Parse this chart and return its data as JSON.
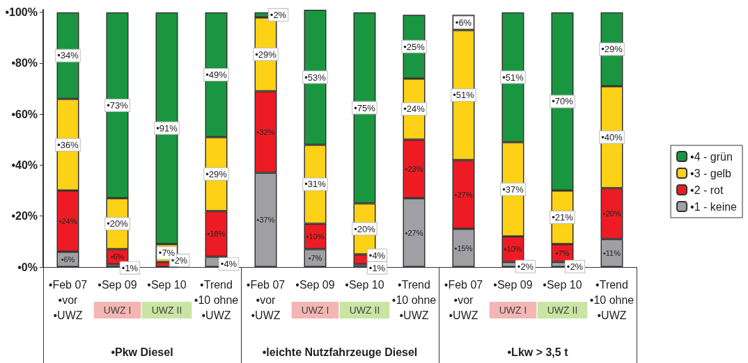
{
  "chart_data": {
    "type": "bar",
    "stacked": true,
    "categories": [
      "•Feb 07\n•vor\n•UWZ",
      "•Sep 09",
      "•Sep 10",
      "•Trend\n•10 ohne\n•UWZ",
      "•Feb 07\n•vor\n•UWZ",
      "•Sep 09",
      "•Sep 10",
      "•Trend\n•10 ohne\n•UWZ",
      "•Feb 07\n•vor\n•UWZ",
      "•Sep 09",
      "•Sep 10",
      "•Trend\n•10 ohne\n•UWZ"
    ],
    "series": [
      {
        "name": "•1 - keine",
        "color": "#a0a0a4",
        "values": [
          6,
          1,
          0,
          4,
          37,
          7,
          1,
          27,
          15,
          2,
          2,
          11
        ],
        "value_labels": [
          "•6%",
          "•1%",
          null,
          "•4%",
          "•37%",
          "•7%",
          "•1%",
          "•27%",
          "•15%",
          "•2%",
          "•2%",
          "•11%"
        ]
      },
      {
        "name": "•2 - rot",
        "color": "#ed1c24",
        "values": [
          24,
          6,
          2,
          18,
          32,
          10,
          4,
          23,
          27,
          10,
          7,
          20
        ],
        "value_labels": [
          "•24%",
          "•6%",
          "•2%",
          "•18%",
          "•32%",
          "•10%",
          "•4%",
          "•23%",
          "•27%",
          "•10%",
          "•7%",
          "•20%"
        ]
      },
      {
        "name": "•3 - gelb",
        "color": "#fcd116",
        "values": [
          36,
          20,
          7,
          29,
          29,
          31,
          20,
          24,
          51,
          37,
          21,
          40
        ],
        "value_labels": [
          "•36%",
          "•20%",
          "•7%",
          "•29%",
          "•29%",
          "•31%",
          "•20%",
          "•24%",
          "•51%",
          "•37%",
          "•21%",
          "•40%"
        ]
      },
      {
        "name": "•4 - grün",
        "color": "#1a9641",
        "values": [
          34,
          73,
          91,
          49,
          2,
          53,
          75,
          25,
          6,
          51,
          70,
          29
        ],
        "value_labels": [
          "•34%",
          "•73%",
          "•91%",
          "•49%",
          "•2%",
          "•53%",
          "•75%",
          "•25%",
          "•6%",
          "•51%",
          "•70%",
          "•29%"
        ]
      }
    ],
    "ylim": [
      0,
      101
    ],
    "yticks": [
      {
        "value": 0,
        "label": "•0%"
      },
      {
        "value": 20,
        "label": "•20%"
      },
      {
        "value": 40,
        "label": "•40%"
      },
      {
        "value": 60,
        "label": "•60%"
      },
      {
        "value": 80,
        "label": "•80%"
      },
      {
        "value": 100,
        "label": "•100%"
      }
    ],
    "grid": false,
    "legend": "right",
    "annotations": [
      "UWZ I",
      "UWZ II",
      "UWZ I",
      "UWZ II",
      "UWZ I",
      "UWZ II",
      "•Pkw Diesel",
      "•leichte Nutzfahrzeuge Diesel",
      "•Lkw > 3,5 t"
    ]
  }
}
